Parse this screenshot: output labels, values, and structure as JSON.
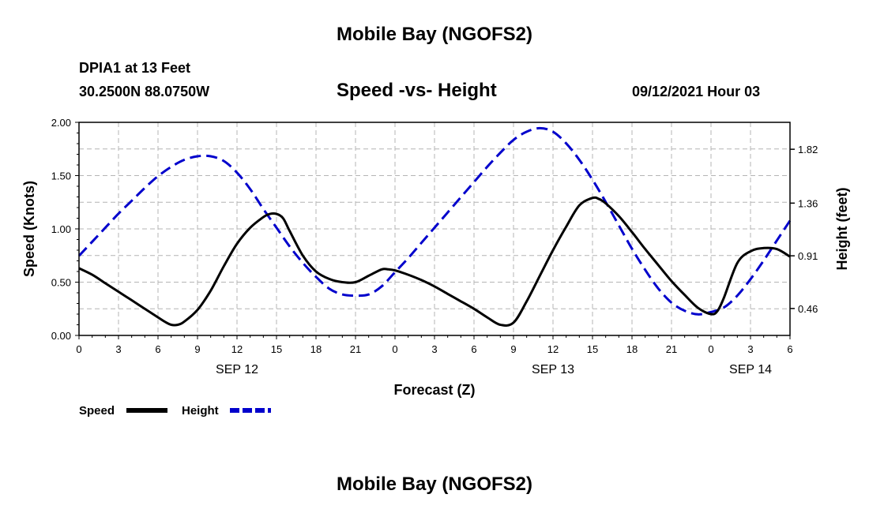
{
  "header": {
    "title_top": "Mobile Bay (NGOFS2)",
    "station": "DPIA1 at 13 Feet",
    "coords": "30.2500N  88.0750W",
    "subtitle": "Speed -vs- Height",
    "datetime": "09/12/2021 Hour 03",
    "title_bottom": "Mobile Bay (NGOFS2)"
  },
  "chart_data": {
    "type": "line",
    "title": "Speed -vs- Height",
    "xlabel": "Forecast (Z)",
    "ylabel_left": "Speed (Knots)",
    "ylabel_right": "Height (feet)",
    "xlim": [
      0,
      54
    ],
    "ylim_left": [
      0,
      2.0
    ],
    "ylim_right": [
      0.23,
      2.05
    ],
    "grid": true,
    "x_ticks": [
      0,
      3,
      6,
      9,
      12,
      15,
      18,
      21,
      24,
      27,
      30,
      33,
      36,
      39,
      42,
      45,
      48,
      51,
      54
    ],
    "x_tick_labels": [
      "0",
      "3",
      "6",
      "9",
      "12",
      "15",
      "18",
      "21",
      "0",
      "3",
      "6",
      "9",
      "12",
      "15",
      "18",
      "21",
      "0",
      "3",
      "6"
    ],
    "date_labels": [
      {
        "label": "SEP 12",
        "x": 12
      },
      {
        "label": "SEP 13",
        "x": 36
      },
      {
        "label": "SEP 14",
        "x": 51
      }
    ],
    "y_left_ticks": [
      0.0,
      0.5,
      1.0,
      1.5,
      2.0
    ],
    "y_left_tick_labels": [
      "0.00",
      "0.50",
      "1.00",
      "1.50",
      "2.00"
    ],
    "y_right_ticks": [
      0.46,
      0.91,
      1.36,
      1.82
    ],
    "y_right_tick_labels": [
      "0.46",
      "0.91",
      "1.36",
      "1.82"
    ],
    "colors": {
      "speed": "#000000",
      "height": "#0000cc",
      "grid": "#b4b4b4"
    },
    "series": [
      {
        "name": "Speed",
        "axis": "left",
        "style": "solid",
        "x": [
          0,
          1,
          2,
          3,
          4,
          5,
          6,
          6.5,
          7,
          7.5,
          8,
          9,
          10,
          11,
          12,
          13,
          14,
          14.5,
          15,
          15.5,
          16,
          17,
          18,
          19,
          20,
          21,
          22,
          23,
          23.5,
          24,
          25,
          26,
          27,
          28,
          29,
          30,
          31,
          32,
          33,
          34,
          35,
          36,
          37,
          38,
          39,
          39.5,
          40,
          41,
          42,
          43,
          44,
          45,
          46,
          47,
          48,
          48.5,
          49,
          50,
          51,
          52,
          53,
          54
        ],
        "y": [
          0.63,
          0.57,
          0.49,
          0.41,
          0.33,
          0.25,
          0.17,
          0.13,
          0.1,
          0.1,
          0.13,
          0.24,
          0.42,
          0.65,
          0.86,
          1.01,
          1.11,
          1.14,
          1.14,
          1.1,
          0.98,
          0.75,
          0.6,
          0.53,
          0.5,
          0.5,
          0.56,
          0.62,
          0.62,
          0.61,
          0.57,
          0.52,
          0.46,
          0.39,
          0.32,
          0.25,
          0.17,
          0.1,
          0.12,
          0.32,
          0.56,
          0.8,
          1.02,
          1.22,
          1.29,
          1.28,
          1.24,
          1.12,
          0.97,
          0.81,
          0.66,
          0.51,
          0.38,
          0.26,
          0.2,
          0.23,
          0.36,
          0.68,
          0.79,
          0.82,
          0.81,
          0.74
        ]
      },
      {
        "name": "Height",
        "axis": "right",
        "style": "dashed",
        "x": [
          0,
          1,
          2,
          3,
          4,
          5,
          6,
          7,
          8,
          9,
          10,
          11,
          12,
          13,
          14,
          15,
          16,
          17,
          18,
          19,
          20,
          21,
          22,
          23,
          24,
          25,
          26,
          27,
          28,
          29,
          30,
          31,
          32,
          33,
          34,
          35,
          36,
          37,
          38,
          39,
          40,
          41,
          42,
          43,
          44,
          45,
          46,
          47,
          48,
          49,
          50,
          51,
          52,
          53,
          54
        ],
        "y": [
          0.91,
          1.03,
          1.15,
          1.27,
          1.38,
          1.49,
          1.59,
          1.67,
          1.73,
          1.76,
          1.76,
          1.72,
          1.62,
          1.48,
          1.31,
          1.15,
          0.99,
          0.85,
          0.73,
          0.63,
          0.58,
          0.57,
          0.58,
          0.65,
          0.77,
          0.89,
          1.02,
          1.15,
          1.28,
          1.41,
          1.54,
          1.67,
          1.79,
          1.9,
          1.97,
          2.0,
          1.97,
          1.87,
          1.73,
          1.56,
          1.37,
          1.17,
          0.97,
          0.79,
          0.63,
          0.51,
          0.44,
          0.41,
          0.43,
          0.47,
          0.57,
          0.71,
          0.87,
          1.04,
          1.21
        ]
      }
    ],
    "legend": [
      {
        "label": "Speed",
        "series": "Speed"
      },
      {
        "label": "Height",
        "series": "Height"
      }
    ],
    "legend_position": "bottom-left"
  }
}
